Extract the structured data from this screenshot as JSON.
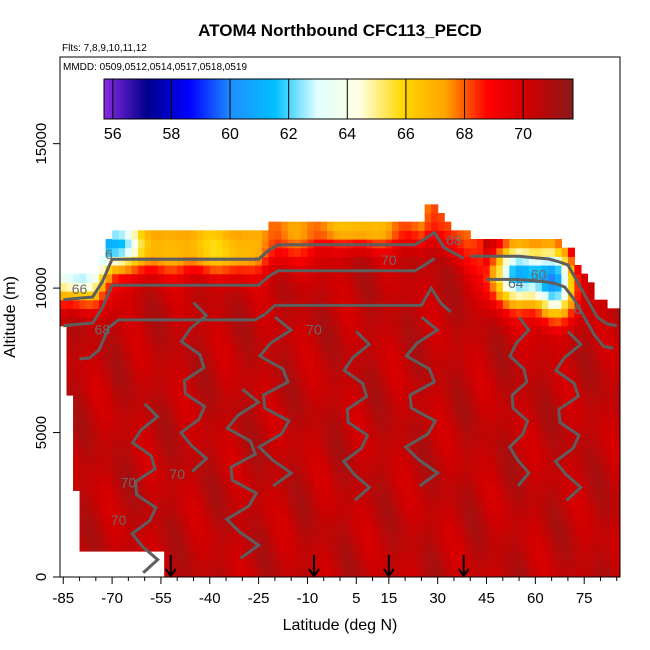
{
  "chart_data": {
    "type": "heatmap",
    "title": "ATOM4 Northbound CFC113_PECD",
    "flights_note": "Flts: 7,8,9,10,11,12",
    "dates_note": "MMDD: 0509,0512,0514,0517,0518,0519",
    "xlabel": "Latitude (deg N)",
    "ylabel": "Altitude (m)",
    "xlim": [
      -86,
      86
    ],
    "ylim": [
      0,
      18000
    ],
    "x_ticks": [
      -85,
      -70,
      -55,
      -40,
      -25,
      -10,
      5,
      15,
      30,
      45,
      60,
      75
    ],
    "x_tick_labels": [
      "-85",
      "-70",
      "-55",
      "-40",
      "-25",
      "-10",
      "5",
      "15",
      "30",
      "45",
      "60",
      "75"
    ],
    "y_ticks": [
      0,
      5000,
      10000,
      15000
    ],
    "y_tick_labels": [
      "0",
      "5000",
      "10000",
      "15000"
    ],
    "colorbar": {
      "min": 55.7,
      "max": 71.7,
      "ticks": [
        56,
        58,
        60,
        62,
        64,
        66,
        68,
        70
      ],
      "tick_labels": [
        "56",
        "58",
        "60",
        "62",
        "64",
        "66",
        "68",
        "70"
      ],
      "colors": [
        "#8a2be2",
        "#00008b",
        "#0000ff",
        "#1e90ff",
        "#00bfff",
        "#e0ffff",
        "#ffffe0",
        "#ffd700",
        "#ffa500",
        "#ff0000",
        "#cc0000",
        "#8b1a1a"
      ]
    },
    "data_region": {
      "bottom_alt": 0,
      "upper_boundary": [
        [
          -85,
          10500
        ],
        [
          -75,
          10600
        ],
        [
          -70,
          11900
        ],
        [
          -25,
          11900
        ],
        [
          -20,
          12400
        ],
        [
          25,
          12400
        ],
        [
          28,
          13000
        ],
        [
          32,
          12300
        ],
        [
          40,
          11800
        ],
        [
          55,
          11800
        ],
        [
          65,
          11700
        ],
        [
          70,
          11500
        ],
        [
          75,
          10500
        ],
        [
          80,
          9500
        ],
        [
          85,
          9400
        ]
      ],
      "lower_boundary": [
        [
          -85,
          8800
        ],
        [
          -82,
          5000
        ],
        [
          -80,
          1000
        ],
        [
          -55,
          1000
        ],
        [
          -55,
          0
        ],
        [
          85,
          0
        ]
      ],
      "background_value": 70.5
    },
    "features": [
      {
        "name": "upper-left-low",
        "lat": -82,
        "alt": 10400,
        "value": 65,
        "lat_spread": 12,
        "alt_spread": 900
      },
      {
        "name": "upper-left-low-2",
        "lat": -70,
        "alt": 11500,
        "value": 63.5,
        "lat_spread": 8,
        "alt_spread": 700
      },
      {
        "name": "upper-belt",
        "lat": -40,
        "alt": 11200,
        "value": 67.5,
        "lat_spread": 25,
        "alt_spread": 800
      },
      {
        "name": "upper-mid",
        "lat": 5,
        "alt": 12000,
        "value": 68.5,
        "lat_spread": 20,
        "alt_spread": 500
      },
      {
        "name": "upper-right-low",
        "lat": 55,
        "alt": 10500,
        "value": 61,
        "lat_spread": 8,
        "alt_spread": 1000
      },
      {
        "name": "upper-right-low-2",
        "lat": 66,
        "alt": 10200,
        "value": 62,
        "lat_spread": 6,
        "alt_spread": 1200
      }
    ],
    "contour_labels": [
      {
        "text": "66",
        "lat": -80,
        "alt": 9800
      },
      {
        "text": "68",
        "lat": -73,
        "alt": 8400
      },
      {
        "text": "68",
        "lat": 35,
        "alt": 11500
      },
      {
        "text": "70",
        "lat": -8,
        "alt": 8400
      },
      {
        "text": "70",
        "lat": 15,
        "alt": 10800
      },
      {
        "text": "70",
        "lat": -65,
        "alt": 3100
      },
      {
        "text": "70",
        "lat": -50,
        "alt": 3400
      },
      {
        "text": "70",
        "lat": -68,
        "alt": 1800
      },
      {
        "text": "64",
        "lat": 54,
        "alt": 10000
      },
      {
        "text": "60",
        "lat": 61,
        "alt": 10300
      },
      {
        "text": "6",
        "lat": -71,
        "alt": 11000
      },
      {
        "text": "6",
        "lat": 73,
        "alt": 9100
      }
    ],
    "arrows": [
      -52,
      -8,
      15,
      38
    ]
  }
}
